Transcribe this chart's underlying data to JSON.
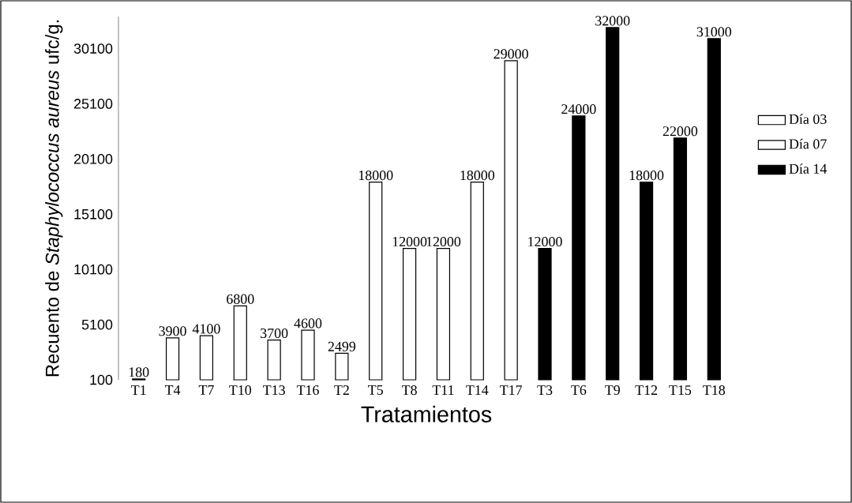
{
  "chart_data": {
    "type": "bar",
    "xlabel": "Tratamientos",
    "ylabel": "Recuento de *Staphylococcus aureus* ufc/g.",
    "categories": [
      "T1",
      "T4",
      "T7",
      "T10",
      "T13",
      "T16",
      "T2",
      "T5",
      "T8",
      "T11",
      "T14",
      "T17",
      "T3",
      "T6",
      "T9",
      "T12",
      "T15",
      "T18"
    ],
    "series": [
      {
        "name": "Día 03",
        "color": "#ffffff",
        "values": [
          180,
          3900,
          4100,
          6800,
          3700,
          4600,
          null,
          null,
          null,
          null,
          null,
          null,
          null,
          null,
          null,
          null,
          null,
          null
        ]
      },
      {
        "name": "Día 07",
        "color": "#ffffff",
        "values": [
          null,
          null,
          null,
          null,
          null,
          null,
          2499,
          18000,
          12000,
          12000,
          18000,
          29000,
          null,
          null,
          null,
          null,
          null,
          null
        ]
      },
      {
        "name": "Día 14",
        "color": "#000000",
        "values": [
          null,
          null,
          null,
          null,
          null,
          null,
          null,
          null,
          null,
          null,
          null,
          null,
          12000,
          24000,
          32000,
          18000,
          22000,
          31000
        ]
      }
    ],
    "ylim": [
      100,
      33000
    ],
    "yticks": [
      100,
      5100,
      10100,
      15100,
      20100,
      25100,
      30100
    ],
    "data_labels": true,
    "legend": "right"
  }
}
